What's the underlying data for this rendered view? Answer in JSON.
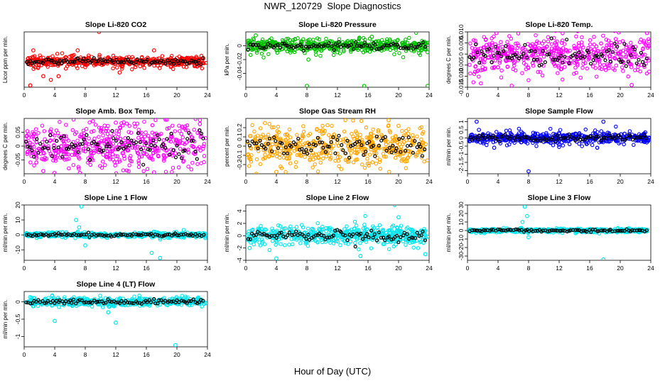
{
  "title": "NWR_120729  Slope Diagnostics",
  "x_axis_title": "Hour of Day (UTC)",
  "colors": {
    "overlay": "#000000",
    "axis": "#000000"
  },
  "chart_data": [
    {
      "id": "co2",
      "type": "scatter",
      "title": "Slope Li-820 CO2",
      "ylabel": "Licor ppm per min.",
      "color": "#ff0000",
      "xlim": [
        0,
        24
      ],
      "ylim": [
        -7,
        8
      ],
      "xticks": [
        0,
        4,
        8,
        12,
        16,
        20,
        24
      ],
      "yticks": [],
      "grid": false,
      "spread": 0.9,
      "center": 0.0,
      "outliers": [
        [
          2.5,
          -4
        ],
        [
          3.5,
          -5
        ],
        [
          4.5,
          -4
        ],
        [
          9.8,
          8
        ],
        [
          1.2,
          3
        ],
        [
          7,
          3
        ],
        [
          12.5,
          -3
        ],
        [
          17,
          3
        ],
        [
          0.8,
          -6.5
        ]
      ]
    },
    {
      "id": "pressure",
      "type": "scatter",
      "title": "Slope Li-820 Pressure",
      "ylabel": "kPa per min.",
      "color": "#00c000",
      "xlim": [
        0,
        24
      ],
      "ylim": [
        -0.06,
        0.02
      ],
      "xticks": [
        0,
        4,
        8,
        12,
        16,
        20,
        24
      ],
      "yticks": [
        0.0,
        -0.02,
        -0.04
      ],
      "grid": false,
      "spread": 0.006,
      "center": 0.0,
      "outliers": [
        [
          8,
          -0.058
        ],
        [
          15.5,
          -0.058
        ],
        [
          23.8,
          -0.058
        ],
        [
          1.3,
          0.015
        ],
        [
          16.5,
          0.013
        ],
        [
          8.2,
          -0.02
        ]
      ]
    },
    {
      "id": "li820temp",
      "type": "scatter",
      "title": "Slope Li-820 Temp.",
      "ylabel": "degrees C per min.",
      "color": "#ff00ff",
      "xlim": [
        0,
        24
      ],
      "ylim": [
        -0.015,
        0.01
      ],
      "xticks": [
        0,
        4,
        8,
        12,
        16,
        20,
        24
      ],
      "yticks": [
        0.01,
        0.005,
        0.0,
        -0.005,
        -0.01,
        -0.015
      ],
      "grid": false,
      "spread": 0.006,
      "center": 0.0,
      "outliers": [
        [
          3.8,
          0.0095
        ],
        [
          23.5,
          0.0095
        ],
        [
          21.5,
          -0.014
        ],
        [
          4,
          -0.006
        ],
        [
          1,
          -0.008
        ]
      ]
    },
    {
      "id": "ambbox",
      "type": "scatter",
      "title": "Slope Amb. Box Temp.",
      "ylabel": "degrees C per min.",
      "color": "#ff00ff",
      "xlim": [
        0,
        24
      ],
      "ylim": [
        -0.1,
        0.1
      ],
      "xticks": [
        0,
        4,
        8,
        12,
        16,
        20,
        24
      ],
      "yticks": [
        0.05,
        0.0,
        -0.05
      ],
      "grid": false,
      "spread": 0.055,
      "center": 0.0,
      "outliers": [
        [
          2.5,
          -0.09
        ],
        [
          9,
          0.09
        ],
        [
          12,
          0.085
        ],
        [
          23,
          0.08
        ],
        [
          17,
          -0.095
        ]
      ]
    },
    {
      "id": "rh",
      "type": "scatter",
      "title": "Slope Gas Stream RH",
      "ylabel": "percent per min.",
      "color": "#ffa500",
      "xlim": [
        0,
        24
      ],
      "ylim": [
        -0.3,
        0.3
      ],
      "xticks": [
        0,
        4,
        8,
        12,
        16,
        20,
        24
      ],
      "yticks": [
        0.2,
        0.1,
        0.0,
        -0.1,
        -0.2
      ],
      "grid": false,
      "spread": 0.13,
      "center": 0.0,
      "outliers": [
        [
          4,
          -0.28
        ],
        [
          18.7,
          0.28
        ],
        [
          2.5,
          0.25
        ],
        [
          12.5,
          -0.25
        ],
        [
          20,
          0.22
        ]
      ]
    },
    {
      "id": "sampleflow",
      "type": "scatter",
      "title": "Slope Sample Flow",
      "ylabel": "ml/min per min.",
      "color": "#0000ff",
      "xlim": [
        0,
        24
      ],
      "ylim": [
        -2.2,
        1.2
      ],
      "xticks": [
        0,
        4,
        8,
        12,
        16,
        20,
        24
      ],
      "yticks": [
        1.0,
        0.5,
        0.0,
        -0.5,
        -1.0,
        -1.5,
        -2.0
      ],
      "grid": false,
      "spread": 0.22,
      "center": 0.0,
      "outliers": [
        [
          8,
          -2.05
        ],
        [
          1.2,
          1.0
        ],
        [
          17.8,
          1.0
        ],
        [
          3.5,
          -0.6
        ],
        [
          12,
          -0.55
        ],
        [
          1.5,
          0.5
        ]
      ]
    },
    {
      "id": "line1",
      "type": "scatter",
      "title": "Slope Line 1 Flow",
      "ylabel": "ml/min per min.",
      "color": "#00e5ee",
      "xlim": [
        0,
        24
      ],
      "ylim": [
        -17,
        20
      ],
      "xticks": [
        0,
        4,
        8,
        12,
        16,
        20,
        24
      ],
      "yticks": [
        20,
        10,
        0,
        -10
      ],
      "grid": false,
      "spread": 1.0,
      "center": 0.0,
      "outliers": [
        [
          7.5,
          19
        ],
        [
          6.8,
          10
        ],
        [
          8,
          -7
        ],
        [
          16.7,
          -12
        ],
        [
          17.8,
          -15.5
        ],
        [
          7.2,
          5
        ]
      ]
    },
    {
      "id": "line2",
      "type": "scatter",
      "title": "Slope Line 2 Flow",
      "ylabel": "ml/min per min.",
      "color": "#00e5ee",
      "xlim": [
        0,
        24
      ],
      "ylim": [
        -4,
        5
      ],
      "xticks": [
        0,
        4,
        8,
        12,
        16,
        20,
        24
      ],
      "yticks": [
        4,
        2,
        0,
        -2,
        -4
      ],
      "grid": false,
      "spread": 0.9,
      "center": 0.0,
      "outliers": [
        [
          19.5,
          5
        ],
        [
          4,
          -3.7
        ],
        [
          0.5,
          -2
        ],
        [
          15,
          -3.3
        ],
        [
          23.5,
          -3
        ],
        [
          20,
          3
        ]
      ]
    },
    {
      "id": "line3",
      "type": "scatter",
      "title": "Slope Line 3 Flow",
      "ylabel": "ml/min per min.",
      "color": "#00e5ee",
      "xlim": [
        0,
        24
      ],
      "ylim": [
        -35,
        30
      ],
      "xticks": [
        0,
        4,
        8,
        12,
        16,
        20,
        24
      ],
      "yticks": [
        30,
        20,
        10,
        0,
        -10,
        -20,
        -30
      ],
      "grid": false,
      "spread": 1.5,
      "center": 0.0,
      "outliers": [
        [
          7.5,
          28
        ],
        [
          7.8,
          17
        ],
        [
          7.2,
          10
        ],
        [
          17.8,
          -34
        ],
        [
          8,
          -8
        ]
      ]
    },
    {
      "id": "line4",
      "type": "scatter",
      "title": "Slope Line 4 (LT) Flow",
      "ylabel": "ml/min per min.",
      "color": "#00e5ee",
      "xlim": [
        0,
        24
      ],
      "ylim": [
        -1.3,
        0.3
      ],
      "xticks": [
        0,
        4,
        8,
        12,
        16,
        20,
        24
      ],
      "yticks": [
        0.0,
        -0.5,
        -1.0
      ],
      "grid": false,
      "spread": 0.08,
      "center": 0.0,
      "outliers": [
        [
          4,
          -0.55
        ],
        [
          12,
          -0.6
        ],
        [
          19.8,
          -1.25
        ],
        [
          11,
          -0.3
        ]
      ]
    }
  ]
}
